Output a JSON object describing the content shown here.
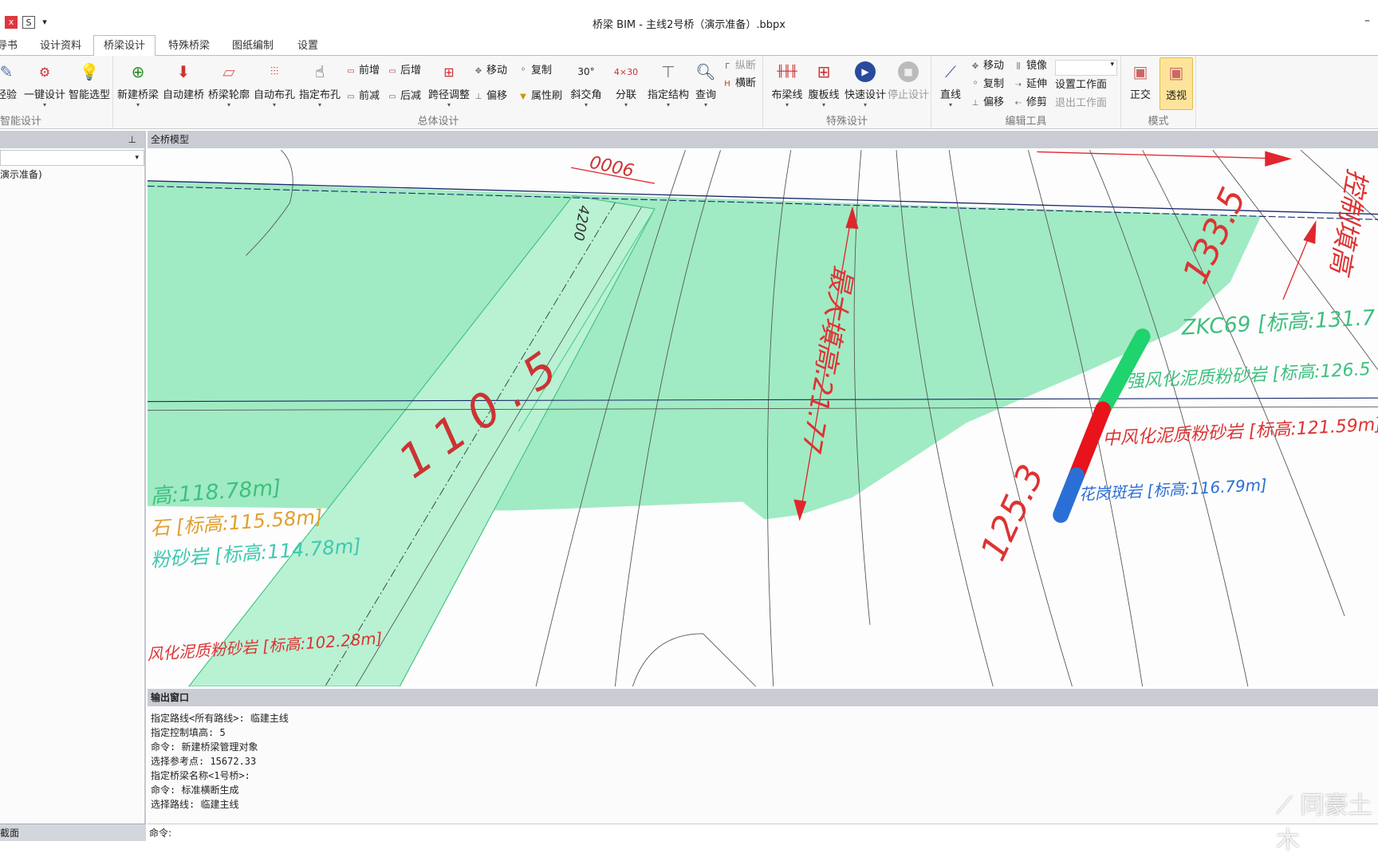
{
  "window": {
    "title": "桥梁 BIM - 主线2号桥（演示准备）.bbpx",
    "minimize": "–",
    "app_icon": "S",
    "quick_access": "▾"
  },
  "tabs": [
    {
      "label": "导书"
    },
    {
      "label": "设计资料"
    },
    {
      "label": "桥梁设计",
      "active": true
    },
    {
      "label": "特殊桥梁"
    },
    {
      "label": "图纸编制"
    },
    {
      "label": "设置"
    }
  ],
  "ribbon": {
    "smart": {
      "label": "智能设计",
      "items": [
        "经验",
        "一键设计",
        "智能选型"
      ]
    },
    "overall": {
      "label": "总体设计",
      "big": [
        "新建桥梁",
        "自动建桥",
        "桥梁轮廓",
        "自动布孔",
        "指定布孔"
      ],
      "small1": [
        "前增",
        "前减"
      ],
      "small2": [
        "后增",
        "后减"
      ],
      "span": "跨径调整",
      "small3": [
        "移动",
        "偏移"
      ],
      "small4": [
        "复制",
        "属性刷"
      ],
      "big2": [
        "斜交角",
        "分联",
        "指定结构",
        "查询"
      ],
      "small5": [
        "纵断",
        "横断"
      ]
    },
    "special": {
      "label": "特殊设计",
      "items": [
        "布梁线",
        "腹板线",
        "快速设计",
        "停止设计"
      ]
    },
    "edit": {
      "label": "编辑工具",
      "line": "直线",
      "col1": [
        "移动",
        "复制",
        "偏移"
      ],
      "col2": [
        "镜像",
        "延伸",
        "修剪"
      ],
      "set_plane": "设置工作面",
      "exit_plane": "退出工作面",
      "plane_select": ""
    },
    "mode": {
      "label": "模式",
      "items": [
        "正交",
        "透视"
      ],
      "active": "透视"
    }
  },
  "left_panel": {
    "tree_item": "演示准备)",
    "bottom_tab": "截面",
    "pin": "pin-icon"
  },
  "viewport": {
    "title": "全桥模型",
    "labels": {
      "dim_top": "0006",
      "dim_4200": "4200",
      "span": "110.5",
      "max_fill": "最大填高:21.77",
      "dim_133": "133.5",
      "dim_125": "125.3",
      "ctrl_fill": "控制填高",
      "zkc69": "ZKC69 [标高:131.7",
      "strong": "强风化泥质粉砂岩 [标高:126.5",
      "medium": "中风化泥质粉砂岩 [标高:121.59m]",
      "granite": "花岗斑岩 [标高:116.79m]",
      "l1": "高:118.78m]",
      "l2": "石 [标高:115.58m]",
      "l3": "粉砂岩 [标高:114.78m]",
      "l4": "风化泥质粉砂岩 [标高:102.28m]"
    },
    "colors": {
      "fill": "#7fe6ae",
      "bridge": "#a8f0c8",
      "dim": "#e0262e",
      "green_text": "#3fbf7f",
      "blue_text": "#2a6fd6"
    }
  },
  "output": {
    "title": "输出窗口",
    "lines": [
      "指定路线<所有路线>: 临建主线",
      "指定控制填高: 5",
      "命令: 新建桥梁管理对象",
      "选择参考点: 15672.33",
      "指定桥梁名称<1号桥>:",
      "命令: 标准横断生成",
      "选择路线: 临建主线"
    ],
    "command_prompt": "命令:"
  },
  "watermark": "同豪土木"
}
